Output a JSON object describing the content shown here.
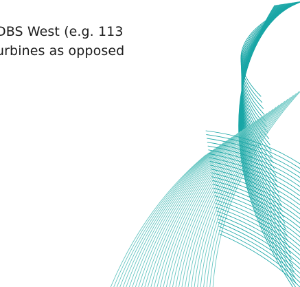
{
  "document": {
    "paragraph_lines": [
      "DBS West (e.g. 113",
      "urbines as opposed"
    ]
  },
  "decoration": {
    "pattern": "curved-line-wave-graphic",
    "colors": {
      "teal": "#19a6a6",
      "teal_light": "#67c6c2"
    }
  }
}
